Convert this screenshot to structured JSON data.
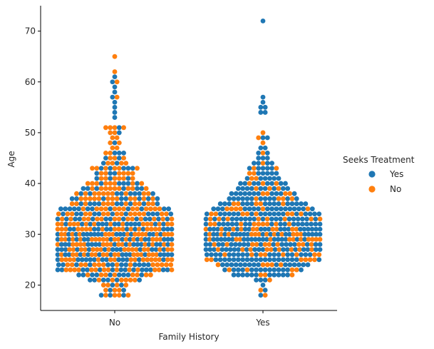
{
  "chart_data": {
    "type": "scatter",
    "subtype": "swarm",
    "title": "",
    "xlabel": "Family History",
    "ylabel": "Age",
    "categories": [
      "No",
      "Yes"
    ],
    "ylim": [
      15,
      75
    ],
    "yticks": [
      20,
      30,
      40,
      50,
      60,
      70
    ],
    "grid": false,
    "legend": {
      "title": "Seeks Treatment",
      "placement": "right",
      "entries": [
        {
          "label": "Yes",
          "color": "#1f77b4"
        },
        {
          "label": "No",
          "color": "#ff7f0e"
        }
      ]
    },
    "series": [
      {
        "name": "Yes",
        "color": "#1f77b4",
        "counts": {
          "No": [
            [
              18,
              3
            ],
            [
              19,
              2
            ],
            [
              20,
              2
            ],
            [
              21,
              6
            ],
            [
              22,
              9
            ],
            [
              23,
              14
            ],
            [
              24,
              12
            ],
            [
              25,
              13
            ],
            [
              26,
              15
            ],
            [
              27,
              13
            ],
            [
              28,
              16
            ],
            [
              29,
              14
            ],
            [
              30,
              16
            ],
            [
              31,
              12
            ],
            [
              32,
              14
            ],
            [
              33,
              13
            ],
            [
              34,
              11
            ],
            [
              35,
              12
            ],
            [
              36,
              9
            ],
            [
              37,
              8
            ],
            [
              38,
              8
            ],
            [
              39,
              6
            ],
            [
              40,
              5
            ],
            [
              41,
              3
            ],
            [
              42,
              3
            ],
            [
              43,
              5
            ],
            [
              44,
              2
            ],
            [
              45,
              2
            ],
            [
              46,
              3
            ],
            [
              48,
              1
            ],
            [
              50,
              1
            ],
            [
              51,
              1
            ],
            [
              53,
              1
            ],
            [
              54,
              1
            ],
            [
              55,
              1
            ],
            [
              56,
              1
            ],
            [
              57,
              1
            ],
            [
              58,
              1
            ],
            [
              59,
              1
            ],
            [
              60,
              1
            ],
            [
              61,
              1
            ]
          ],
          "Yes": [
            [
              18,
              1
            ],
            [
              19,
              1
            ],
            [
              20,
              1
            ],
            [
              21,
              3
            ],
            [
              22,
              11
            ],
            [
              23,
              14
            ],
            [
              24,
              16
            ],
            [
              25,
              20
            ],
            [
              26,
              18
            ],
            [
              27,
              20
            ],
            [
              28,
              18
            ],
            [
              29,
              20
            ],
            [
              30,
              19
            ],
            [
              31,
              20
            ],
            [
              32,
              18
            ],
            [
              33,
              19
            ],
            [
              34,
              18
            ],
            [
              35,
              17
            ],
            [
              36,
              15
            ],
            [
              37,
              12
            ],
            [
              38,
              11
            ],
            [
              39,
              9
            ],
            [
              40,
              8
            ],
            [
              41,
              6
            ],
            [
              42,
              5
            ],
            [
              43,
              5
            ],
            [
              44,
              4
            ],
            [
              45,
              3
            ],
            [
              46,
              2
            ],
            [
              47,
              2
            ],
            [
              49,
              2
            ],
            [
              54,
              2
            ],
            [
              55,
              2
            ],
            [
              56,
              1
            ],
            [
              57,
              1
            ],
            [
              72,
              1
            ]
          ]
        }
      },
      {
        "name": "No",
        "color": "#ff7f0e",
        "counts": {
          "No": [
            [
              18,
              4
            ],
            [
              19,
              3
            ],
            [
              20,
              4
            ],
            [
              21,
              6
            ],
            [
              22,
              8
            ],
            [
              23,
              14
            ],
            [
              24,
              14
            ],
            [
              25,
              16
            ],
            [
              26,
              16
            ],
            [
              27,
              17
            ],
            [
              28,
              15
            ],
            [
              29,
              17
            ],
            [
              30,
              16
            ],
            [
              31,
              17
            ],
            [
              32,
              15
            ],
            [
              33,
              14
            ],
            [
              34,
              15
            ],
            [
              35,
              13
            ],
            [
              36,
              11
            ],
            [
              37,
              12
            ],
            [
              38,
              10
            ],
            [
              39,
              9
            ],
            [
              40,
              8
            ],
            [
              41,
              6
            ],
            [
              42,
              6
            ],
            [
              43,
              6
            ],
            [
              44,
              4
            ],
            [
              45,
              3
            ],
            [
              46,
              2
            ],
            [
              47,
              2
            ],
            [
              48,
              2
            ],
            [
              49,
              2
            ],
            [
              50,
              2
            ],
            [
              51,
              4
            ],
            [
              57,
              1
            ],
            [
              60,
              1
            ],
            [
              62,
              1
            ],
            [
              65,
              1
            ]
          ],
          "Yes": [
            [
              18,
              1
            ],
            [
              19,
              1
            ],
            [
              21,
              1
            ],
            [
              22,
              3
            ],
            [
              23,
              4
            ],
            [
              24,
              5
            ],
            [
              25,
              6
            ],
            [
              26,
              8
            ],
            [
              27,
              9
            ],
            [
              28,
              10
            ],
            [
              29,
              11
            ],
            [
              30,
              12
            ],
            [
              31,
              10
            ],
            [
              32,
              9
            ],
            [
              33,
              8
            ],
            [
              34,
              8
            ],
            [
              35,
              6
            ],
            [
              36,
              5
            ],
            [
              37,
              4
            ],
            [
              38,
              4
            ],
            [
              39,
              3
            ],
            [
              40,
              3
            ],
            [
              41,
              2
            ],
            [
              42,
              2
            ],
            [
              43,
              2
            ],
            [
              44,
              1
            ],
            [
              46,
              1
            ],
            [
              48,
              1
            ],
            [
              49,
              1
            ],
            [
              50,
              1
            ]
          ]
        }
      }
    ]
  }
}
